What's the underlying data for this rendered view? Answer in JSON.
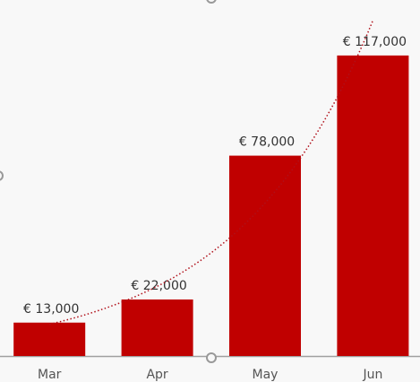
{
  "chart_data": {
    "type": "bar",
    "categories": [
      "Mar",
      "Apr",
      "May",
      "Jun"
    ],
    "values": [
      13000,
      22000,
      78000,
      117000
    ],
    "value_labels": [
      "€ 13,000",
      "€ 22,000",
      "€ 78,000",
      "€ 117,000"
    ],
    "color": "#c00000",
    "ylim": [
      0,
      138600
    ],
    "trendline": "exponential",
    "trendline_color": "#b0101a"
  }
}
